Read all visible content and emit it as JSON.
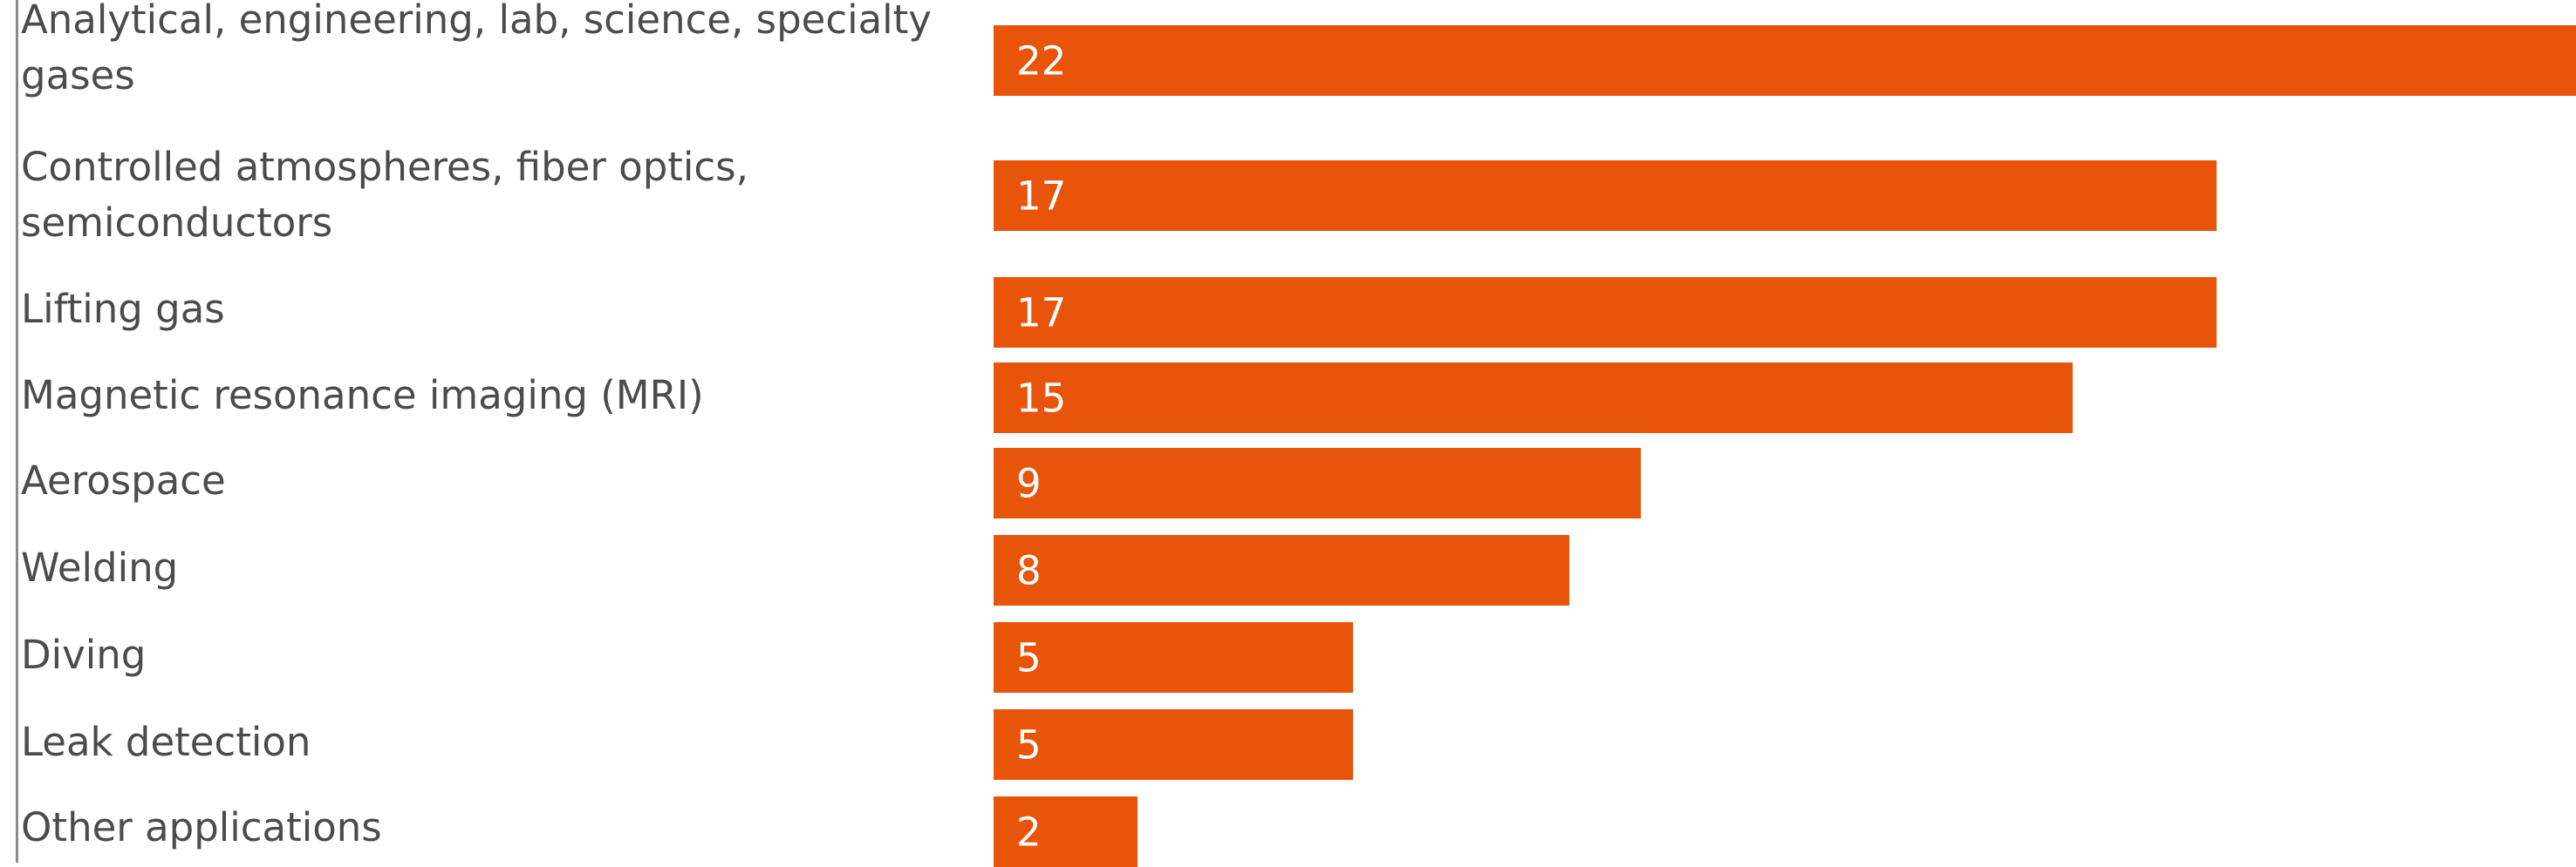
{
  "chart_data": {
    "type": "bar",
    "orientation": "horizontal",
    "title": "",
    "xlabel": "",
    "ylabel": "",
    "xlim": [
      0,
      22
    ],
    "grid": false,
    "legend": "none",
    "bar_color": "#e8540a",
    "label_color": "#4b4b4b",
    "value_color": "#ffffff",
    "categories": [
      "Analytical, engineering, lab, science, specialty gases",
      "Controlled atmospheres, fiber optics, semiconductors",
      "Lifting gas",
      "Magnetic resonance imaging (MRI)",
      "Aerospace",
      "Welding",
      "Diving",
      "Leak detection",
      "Other applications"
    ],
    "values": [
      22,
      17,
      17,
      15,
      9,
      8,
      5,
      5,
      2
    ],
    "data_labels": [
      "22",
      "17",
      "17",
      "15",
      "9",
      "8",
      "5",
      "5",
      "2"
    ]
  }
}
